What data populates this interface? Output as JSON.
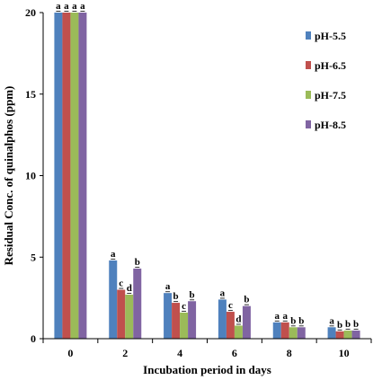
{
  "chart_data": {
    "type": "bar",
    "xlabel": "Incubation period in days",
    "ylabel": "Residual Conc. of quinalphos (ppm)",
    "categories": [
      "0",
      "2",
      "4",
      "6",
      "8",
      "10"
    ],
    "ylim": [
      0,
      20
    ],
    "yticks": [
      "0",
      "5",
      "10",
      "15",
      "20"
    ],
    "grid": false,
    "legend_position": "top-right",
    "series": [
      {
        "name": "pH-5.5",
        "color": "#4F81BD",
        "values": [
          20.0,
          4.8,
          2.8,
          2.4,
          1.0,
          0.7
        ],
        "labels": [
          "a",
          "a",
          "a",
          "a",
          "a",
          "a"
        ]
      },
      {
        "name": "pH-6.5",
        "color": "#C0504D",
        "values": [
          20.0,
          3.0,
          2.2,
          1.65,
          1.0,
          0.45
        ],
        "labels": [
          "a",
          "c",
          "b",
          "c",
          "a",
          "b"
        ]
      },
      {
        "name": "pH-7.5",
        "color": "#9BBB59",
        "values": [
          20.0,
          2.7,
          1.6,
          0.8,
          0.7,
          0.5
        ],
        "labels": [
          "a",
          "d",
          "c",
          "d",
          "b",
          "b"
        ]
      },
      {
        "name": "pH-8.5",
        "color": "#8064A2",
        "values": [
          20.0,
          4.3,
          2.3,
          2.0,
          0.7,
          0.5
        ],
        "labels": [
          "a",
          "b",
          "b",
          "b",
          "b",
          "b"
        ]
      }
    ]
  }
}
